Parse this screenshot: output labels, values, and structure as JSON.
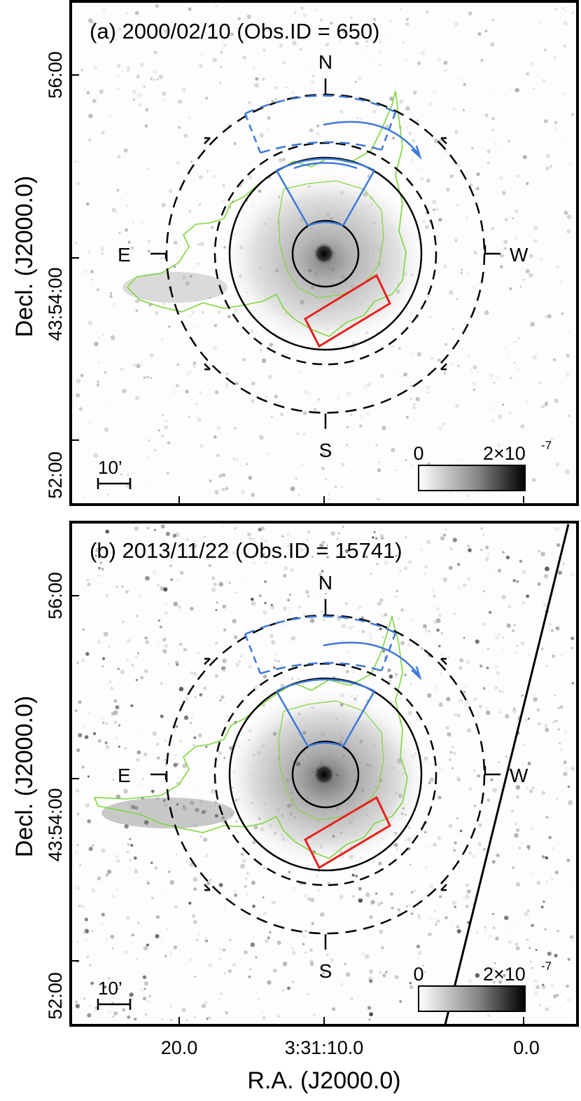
{
  "axes": {
    "ylabel": "Decl. (J2000.0)",
    "xlabel": "R.A. (J2000.0)",
    "yticks": [
      "56:00",
      "43:54:00",
      "52:00"
    ],
    "xticks": [
      "20.0",
      "3:31:10.0",
      "0.0"
    ]
  },
  "panels": [
    {
      "title": "(a) 2000/02/10 (Obs.ID = 650)",
      "directions": {
        "n": "N",
        "s": "S",
        "e": "E",
        "w": "W"
      },
      "scalebar": "10’",
      "colorbar": {
        "min": "0",
        "max_base": "2×10",
        "max_exp": "-7"
      }
    },
    {
      "title": "(b) 2013/11/22 (Obs.ID = 15741)",
      "directions": {
        "n": "N",
        "s": "S",
        "e": "E",
        "w": "W"
      },
      "scalebar": "10’",
      "colorbar": {
        "min": "0",
        "max_base": "2×10",
        "max_exp": "-7"
      }
    }
  ],
  "colors": {
    "contour": "#7fd63c",
    "region_blue": "#3c78d8",
    "box_red": "#e8201c",
    "circles": "#000000"
  }
}
